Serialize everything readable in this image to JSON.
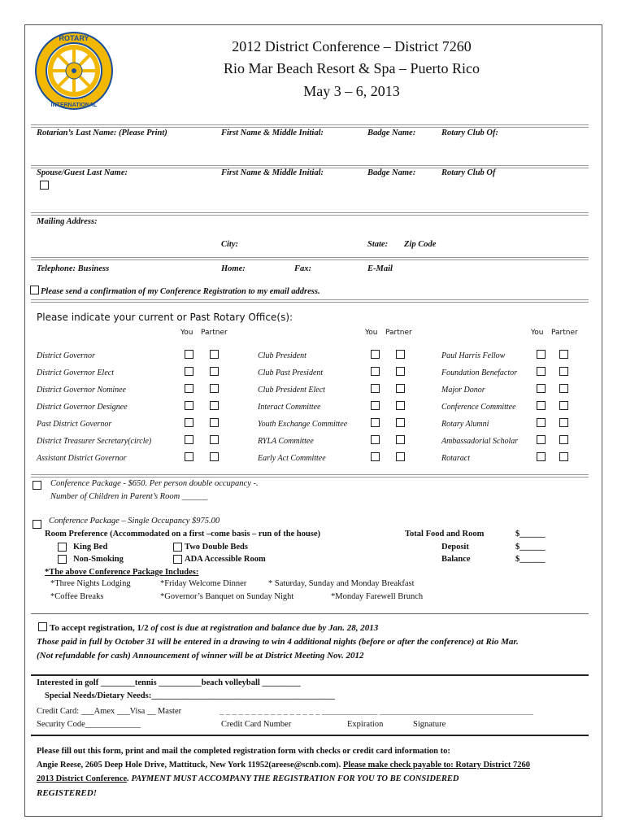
{
  "header": {
    "title_line1": "2012 District Conference – District 7260",
    "title_line2": "Rio Mar Beach Resort & Spa – Puerto Rico",
    "title_line3": "May 3 – 6, 2013",
    "logo_text_top": "ROTARY",
    "logo_text_bottom": "INTERNATIONAL",
    "logo_colors": {
      "gold": "#f2b800",
      "blue": "#1a4f9c"
    }
  },
  "member": {
    "last_name": "Rotarian’s Last Name: (Please Print)",
    "first_name": "First Name & Middle Initial:",
    "badge": "Badge Name:",
    "club": "Rotary Club Of:"
  },
  "guest": {
    "last_name": "Spouse/Guest Last Name:",
    "first_name": "First Name & Middle Initial:",
    "badge": "Badge Name:",
    "club": "Rotary Club Of"
  },
  "address": {
    "mailing": "Mailing Address:",
    "city": "City:",
    "state": "State:",
    "zip": "Zip Code"
  },
  "phone": {
    "business": "Telephone:  Business",
    "home": "Home:",
    "fax": "Fax:",
    "email": "E-Mail"
  },
  "confirm_label": "Please send a confirmation of my Conference Registration to my email address.",
  "offices": {
    "heading": "Please indicate your current or Past Rotary Office(s):",
    "you": "You",
    "partner": "Partner",
    "columns": [
      [
        "District Governor",
        "District Governor Elect",
        "District Governor Nominee",
        "District Governor Designee",
        "Past District Governor",
        "District Treasurer   Secretary(circle)",
        "Assistant District Governor"
      ],
      [
        "Club President",
        "Club Past President",
        "Club President Elect",
        "Interact Committee",
        "Youth Exchange Committee",
        "RYLA Committee",
        "Early Act Committee"
      ],
      [
        "Paul Harris Fellow",
        "Foundation Benefactor",
        "Major Donor",
        "Conference Committee",
        "Rotary Alumni",
        "Ambassadorial Scholar",
        "Rotaract"
      ]
    ]
  },
  "package_double": {
    "label": "Conference Package - $650. Per person double occupancy -.",
    "children": "Number of Children in Parent’s Room ______"
  },
  "package_single": {
    "label": "Conference Package – Single Occupancy $975.00",
    "room_pref": "Room Preference (Accommodated on a first –come basis – run of the house)",
    "king": "King Bed",
    "two_double": "Two Double Beds",
    "non_smoking": "Non-Smoking",
    "ada": "ADA Accessible Room",
    "total": "Total Food and Room",
    "deposit": "Deposit",
    "balance": "Balance",
    "dollar_blank": "$______",
    "includes_heading": "*The above Conference Package Includes:",
    "inc1": "*Three Nights Lodging",
    "inc2": "*Friday Welcome Dinner",
    "inc3": "* Saturday, Sunday and Monday  Breakfast",
    "inc4": "*Coffee Breaks",
    "inc5": "*Governor’s Banquet on Sunday Night",
    "inc6": "*Monday Farewell Brunch"
  },
  "registration": {
    "line1a": "To accept registration, 1/2 ",
    "line1b": "of cost is due at registration and balance due by  Jan. 28, 2013",
    "line2": "Those paid in full by October 31 will be entered in a drawing to win 4 additional nights (before or after the conference) at Rio Mar.",
    "line3": "(Not refundable for cash) Announcement of winner will be at District Meeting Nov. 2012"
  },
  "extras": {
    "interested": "Interested in golf ________tennis __________beach volleyball _________",
    "special": "Special Needs/Dietary Needs:___________________________________________"
  },
  "payment": {
    "card": "Credit Card:   ___Amex   ___Visa  __ Master",
    "card_blanks": "_ _ _ _ _ _ _ _ _ _ _ _ _ _ _ _   _____________   ____________________________________",
    "security": "Security Code_____________",
    "number": "Credit Card Number",
    "expiration": "Expiration",
    "signature": "Signature"
  },
  "footer": {
    "line1": "Please fill out this form, print and mail the completed registration form with checks or credit card information to:",
    "line2a": "Angie Reese, 2605 Deep Hole Drive, Mattituck, New York 11952(areese@scnb.com).  ",
    "line2b": "Please make check payable to: Rotary District 7260",
    "line3a": "2013 District Conference",
    "line3b": ". PAYMENT MUST ACCOMPANY THE REGISTRATION FOR YOU TO BE CONSIDERED",
    "line4": "REGISTERED!"
  }
}
